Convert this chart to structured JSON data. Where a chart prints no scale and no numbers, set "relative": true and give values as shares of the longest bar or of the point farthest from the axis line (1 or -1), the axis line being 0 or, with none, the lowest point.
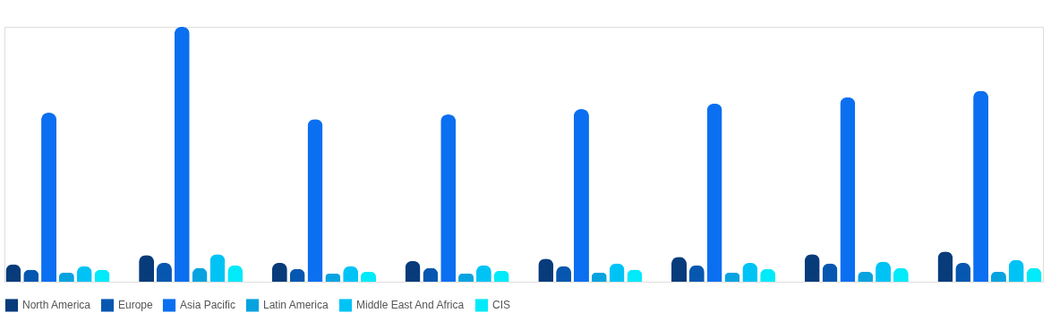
{
  "chart_data": {
    "type": "bar",
    "relative": true,
    "legend": "bottom",
    "categories": [
      null,
      null,
      null,
      null,
      null,
      null,
      null,
      null
    ],
    "series": [
      {
        "name": "North America",
        "color": "#073b7a",
        "values": [
          0.068,
          0.104,
          0.075,
          0.082,
          0.09,
          0.097,
          0.108,
          0.118
        ]
      },
      {
        "name": "Europe",
        "color": "#0657b0",
        "values": [
          0.047,
          0.075,
          0.05,
          0.054,
          0.061,
          0.065,
          0.072,
          0.075
        ]
      },
      {
        "name": "Asia Pacific",
        "color": "#0a6ff0",
        "values": [
          0.663,
          1,
          0.638,
          0.656,
          0.677,
          0.699,
          0.724,
          0.749
        ]
      },
      {
        "name": "Latin America",
        "color": "#07a3e0",
        "values": [
          0.036,
          0.054,
          0.032,
          0.032,
          0.036,
          0.036,
          0.039,
          0.039
        ]
      },
      {
        "name": "Middle East And Africa",
        "color": "#00c3f5",
        "values": [
          0.061,
          0.108,
          0.061,
          0.065,
          0.072,
          0.075,
          0.079,
          0.086
        ]
      },
      {
        "name": "CIS",
        "color": "#00eaf9",
        "values": [
          0.047,
          0.065,
          0.039,
          0.043,
          0.047,
          0.05,
          0.054,
          0.054
        ]
      }
    ]
  }
}
